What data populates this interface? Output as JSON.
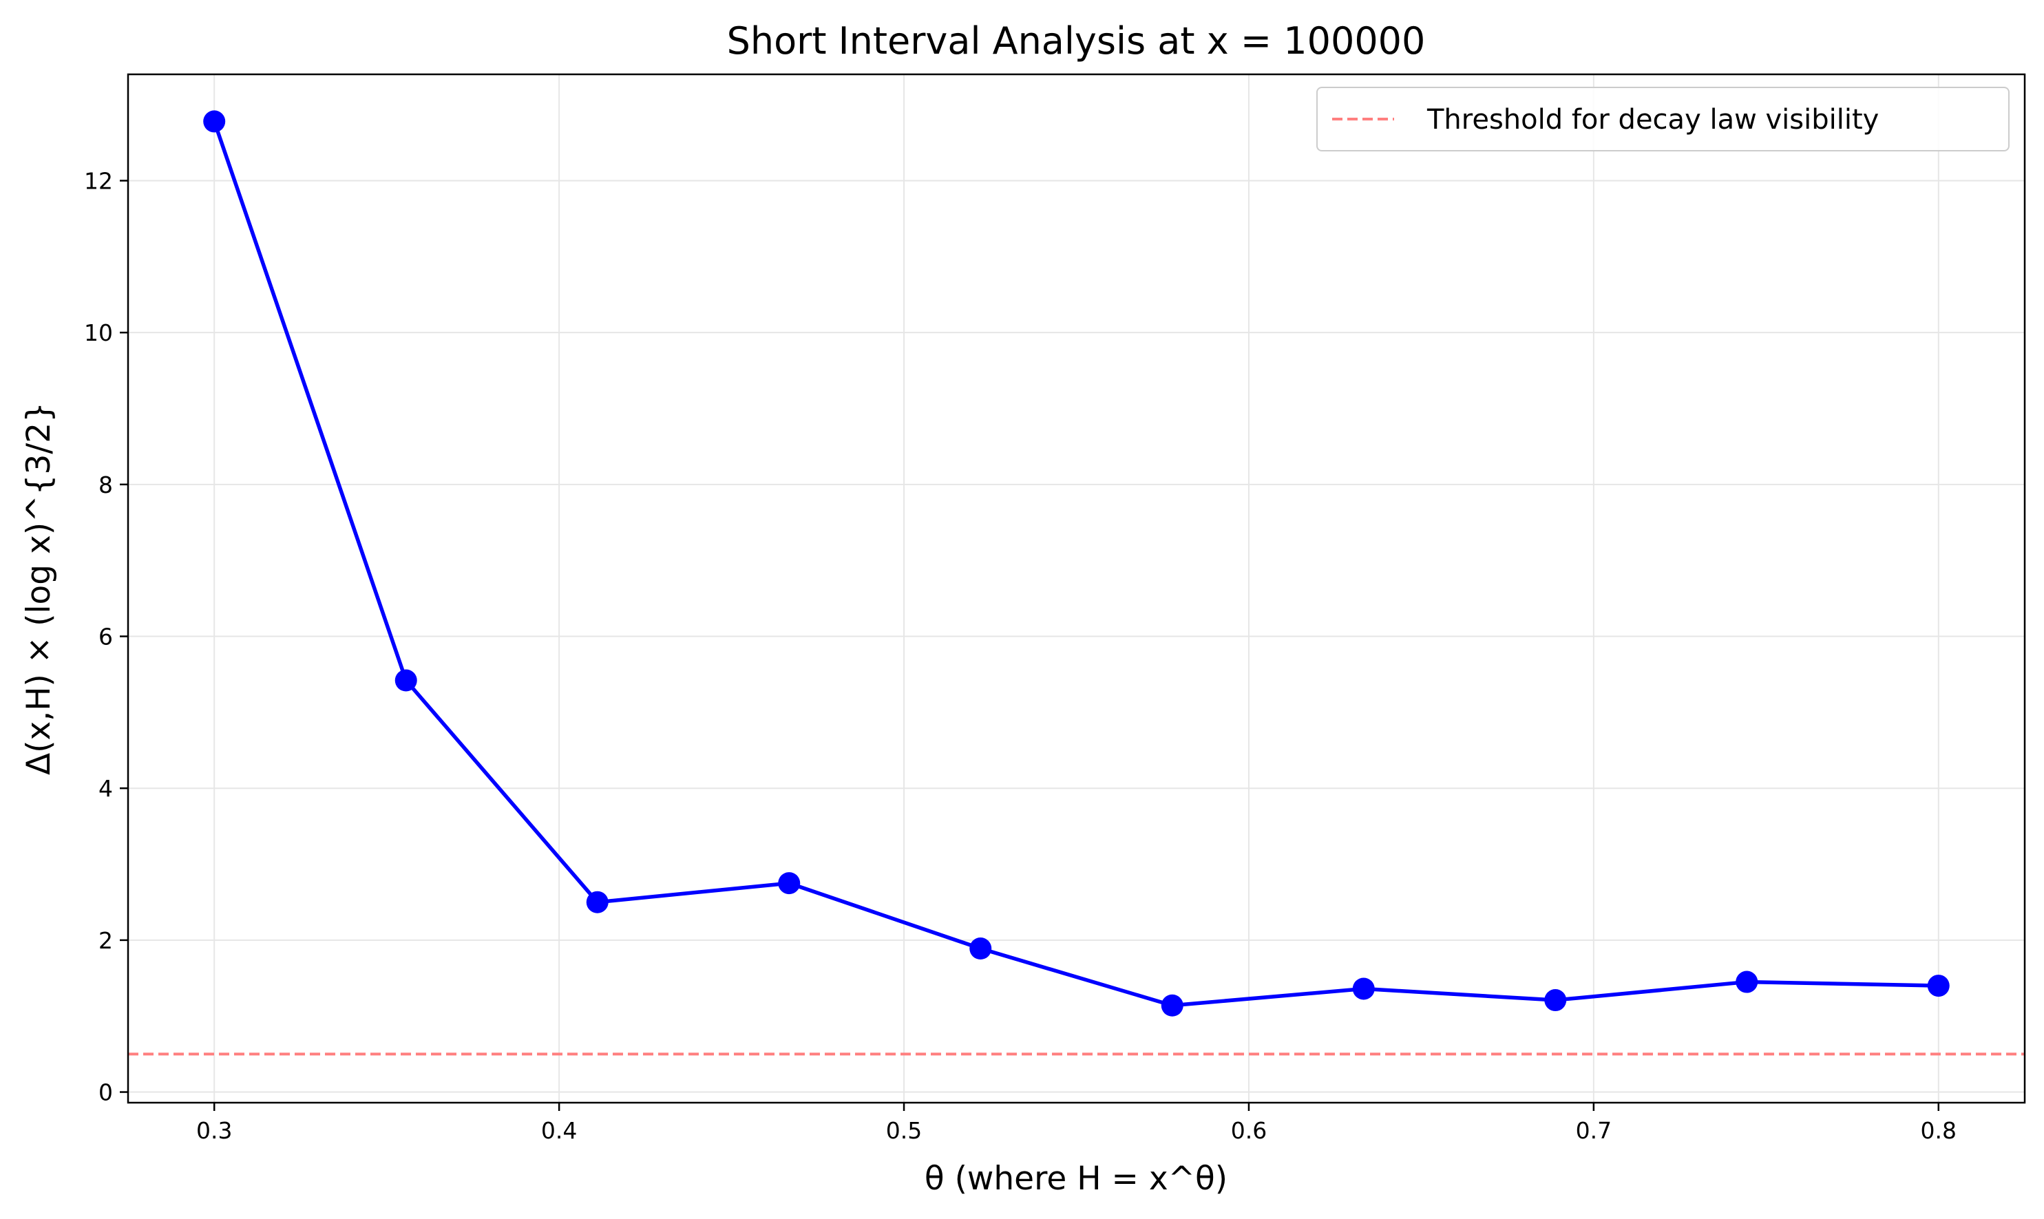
{
  "chart_data": {
    "type": "line",
    "title": "Short Interval Analysis at x = 100000",
    "xlabel": "θ (where H = x^θ)",
    "ylabel": "Δ(x,H) × (log x)^{3/2}",
    "xlim": [
      0.275,
      0.825
    ],
    "ylim": [
      -0.14,
      13.4
    ],
    "x_ticks": [
      0.3,
      0.4,
      0.5,
      0.6,
      0.7,
      0.8
    ],
    "x_tick_labels": [
      "0.3",
      "0.4",
      "0.5",
      "0.6",
      "0.7",
      "0.8"
    ],
    "y_ticks": [
      0,
      2,
      4,
      6,
      8,
      10,
      12
    ],
    "y_tick_labels": [
      "0",
      "2",
      "4",
      "6",
      "8",
      "10",
      "12"
    ],
    "grid": true,
    "legend_position": "top-right",
    "series": [
      {
        "color": "#0000ff",
        "marker": "circle",
        "x": [
          0.3,
          0.3556,
          0.4111,
          0.4667,
          0.5222,
          0.5778,
          0.6333,
          0.6889,
          0.7444,
          0.8
        ],
        "y": [
          12.78,
          5.42,
          2.5,
          2.75,
          1.89,
          1.14,
          1.36,
          1.21,
          1.45,
          1.4
        ]
      }
    ],
    "reference_lines": [
      {
        "name": "Threshold for decay law visibility",
        "y": 0.5,
        "color": "#ff7f7f",
        "style": "dashed"
      }
    ]
  }
}
